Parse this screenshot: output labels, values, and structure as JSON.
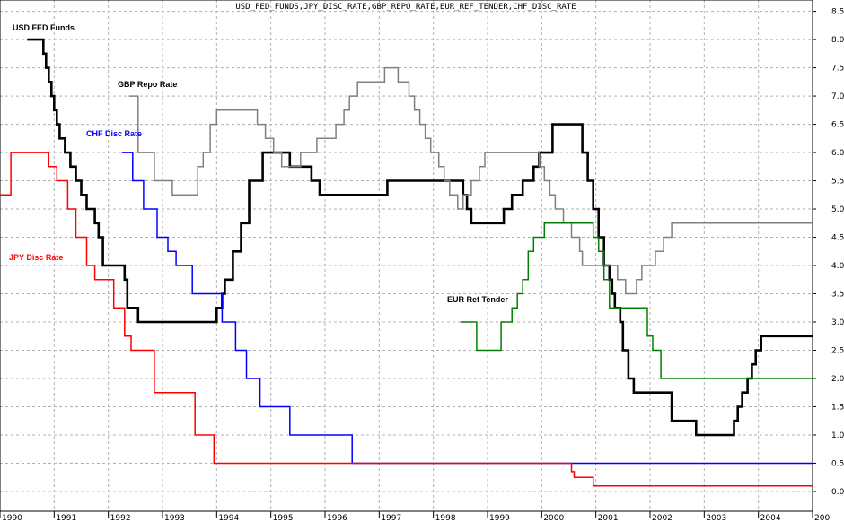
{
  "chart_data": {
    "type": "line",
    "title": "USD_FED_FUNDS,JPY_DISC_RATE,GBP_REPO_RATE,EUR_REF_TENDER,CHF_DISC_RATE",
    "xlabel": "",
    "ylabel": "",
    "xlim": [
      1990.0,
      2005.0
    ],
    "ylim": [
      -0.35,
      8.7
    ],
    "x_ticks": [
      "1990",
      "1991",
      "1992",
      "1993",
      "1994",
      "1995",
      "1996",
      "1997",
      "1998",
      "1999",
      "2000",
      "2001",
      "2002",
      "2003",
      "2004",
      "200"
    ],
    "y_ticks": [
      "0.0",
      "0.5",
      "1.0",
      "1.5",
      "2.0",
      "2.5",
      "3.0",
      "3.5",
      "4.0",
      "4.5",
      "5.0",
      "5.5",
      "6.0",
      "6.5",
      "7.0",
      "7.5",
      "8.0",
      "8.5"
    ],
    "grid": true,
    "series": [
      {
        "name": "USD FED Funds",
        "color": "#000000",
        "points": [
          [
            1990.5,
            8.0
          ],
          [
            1990.8,
            7.75
          ],
          [
            1990.85,
            7.5
          ],
          [
            1990.9,
            7.25
          ],
          [
            1990.95,
            7.0
          ],
          [
            1991.0,
            6.75
          ],
          [
            1991.05,
            6.5
          ],
          [
            1991.1,
            6.25
          ],
          [
            1991.2,
            6.0
          ],
          [
            1991.3,
            5.75
          ],
          [
            1991.4,
            5.5
          ],
          [
            1991.5,
            5.25
          ],
          [
            1991.6,
            5.0
          ],
          [
            1991.75,
            4.75
          ],
          [
            1991.82,
            4.5
          ],
          [
            1991.9,
            4.0
          ],
          [
            1992.3,
            3.75
          ],
          [
            1992.35,
            3.25
          ],
          [
            1992.55,
            3.0
          ],
          [
            1994.0,
            3.25
          ],
          [
            1994.1,
            3.5
          ],
          [
            1994.15,
            3.75
          ],
          [
            1994.3,
            4.25
          ],
          [
            1994.45,
            4.75
          ],
          [
            1994.6,
            5.5
          ],
          [
            1994.85,
            6.0
          ],
          [
            1995.35,
            5.75
          ],
          [
            1995.75,
            5.5
          ],
          [
            1995.9,
            5.25
          ],
          [
            1997.15,
            5.5
          ],
          [
            1998.55,
            5.25
          ],
          [
            1998.62,
            5.0
          ],
          [
            1998.7,
            4.75
          ],
          [
            1999.3,
            5.0
          ],
          [
            1999.45,
            5.25
          ],
          [
            1999.65,
            5.5
          ],
          [
            1999.85,
            5.75
          ],
          [
            1999.95,
            6.0
          ],
          [
            2000.2,
            6.5
          ],
          [
            2000.75,
            6.0
          ],
          [
            2000.85,
            5.5
          ],
          [
            2000.95,
            5.0
          ],
          [
            2001.05,
            4.5
          ],
          [
            2001.15,
            4.0
          ],
          [
            2001.25,
            3.75
          ],
          [
            2001.3,
            3.5
          ],
          [
            2001.35,
            3.25
          ],
          [
            2001.45,
            3.0
          ],
          [
            2001.5,
            2.5
          ],
          [
            2001.6,
            2.0
          ],
          [
            2001.7,
            1.75
          ],
          [
            2002.4,
            1.25
          ],
          [
            2002.85,
            1.0
          ],
          [
            2003.55,
            1.25
          ],
          [
            2003.62,
            1.5
          ],
          [
            2003.7,
            1.75
          ],
          [
            2003.8,
            2.0
          ],
          [
            2003.88,
            2.25
          ],
          [
            2003.95,
            2.5
          ],
          [
            2004.05,
            2.75
          ],
          [
            2004.15,
            2.75
          ]
        ]
      },
      {
        "name": "GBP Repo Rate",
        "color": "#808080",
        "points": [
          [
            1992.38,
            7.0
          ],
          [
            1992.55,
            6.0
          ],
          [
            1992.85,
            5.5
          ],
          [
            1993.18,
            5.25
          ],
          [
            1993.65,
            5.75
          ],
          [
            1993.75,
            6.0
          ],
          [
            1993.88,
            6.5
          ],
          [
            1994.0,
            6.75
          ],
          [
            1994.75,
            6.5
          ],
          [
            1994.9,
            6.25
          ],
          [
            1995.05,
            6.0
          ],
          [
            1995.2,
            5.75
          ],
          [
            1995.55,
            6.0
          ],
          [
            1995.85,
            6.25
          ],
          [
            1996.2,
            6.5
          ],
          [
            1996.35,
            6.75
          ],
          [
            1996.45,
            7.0
          ],
          [
            1996.6,
            7.25
          ],
          [
            1997.1,
            7.5
          ],
          [
            1997.35,
            7.25
          ],
          [
            1997.55,
            7.0
          ],
          [
            1997.65,
            6.75
          ],
          [
            1997.75,
            6.5
          ],
          [
            1997.85,
            6.25
          ],
          [
            1997.95,
            6.0
          ],
          [
            1998.1,
            5.75
          ],
          [
            1998.2,
            5.5
          ],
          [
            1998.3,
            5.25
          ],
          [
            1998.45,
            5.0
          ],
          [
            1998.55,
            5.25
          ],
          [
            1998.7,
            5.5
          ],
          [
            1998.85,
            5.75
          ],
          [
            1998.95,
            6.0
          ],
          [
            1999.95,
            5.75
          ],
          [
            2000.05,
            5.5
          ],
          [
            2000.15,
            5.25
          ],
          [
            2000.25,
            5.0
          ],
          [
            2000.4,
            4.75
          ],
          [
            2000.55,
            4.5
          ],
          [
            2000.7,
            4.25
          ],
          [
            2000.75,
            4.0
          ],
          [
            2001.4,
            3.75
          ],
          [
            2001.55,
            3.5
          ],
          [
            2001.75,
            3.75
          ],
          [
            2001.85,
            4.0
          ],
          [
            2002.1,
            4.25
          ],
          [
            2002.25,
            4.5
          ],
          [
            2002.4,
            4.75
          ],
          [
            2002.5,
            4.75
          ]
        ]
      },
      {
        "name": "CHF Disc Rate",
        "color": "#0000ff",
        "points": [
          [
            1992.25,
            6.0
          ],
          [
            1992.45,
            5.5
          ],
          [
            1992.65,
            5.0
          ],
          [
            1992.9,
            4.5
          ],
          [
            1993.1,
            4.25
          ],
          [
            1993.25,
            4.0
          ],
          [
            1993.55,
            3.5
          ],
          [
            1994.1,
            3.0
          ],
          [
            1994.35,
            2.5
          ],
          [
            1994.55,
            2.0
          ],
          [
            1994.8,
            1.5
          ],
          [
            1995.35,
            1.0
          ],
          [
            1996.5,
            0.5
          ],
          [
            2004.15,
            0.5
          ]
        ]
      },
      {
        "name": "JPY Disc Rate",
        "color": "#ff0000",
        "points": [
          [
            1989.5,
            4.25
          ],
          [
            1989.8,
            5.25
          ],
          [
            1990.2,
            6.0
          ],
          [
            1990.9,
            5.75
          ],
          [
            1991.05,
            5.5
          ],
          [
            1991.25,
            5.0
          ],
          [
            1991.4,
            4.5
          ],
          [
            1991.6,
            4.0
          ],
          [
            1991.75,
            3.75
          ],
          [
            1992.1,
            3.25
          ],
          [
            1992.3,
            2.75
          ],
          [
            1992.42,
            2.5
          ],
          [
            1992.85,
            1.75
          ],
          [
            1993.6,
            1.0
          ],
          [
            1993.95,
            0.5
          ],
          [
            2000.55,
            0.35
          ],
          [
            2000.6,
            0.25
          ],
          [
            2000.95,
            0.1
          ],
          [
            2004.15,
            0.1
          ]
        ]
      },
      {
        "name": "EUR Ref Tender",
        "color": "#008000",
        "points": [
          [
            1998.5,
            3.0
          ],
          [
            1998.8,
            2.5
          ],
          [
            1999.25,
            3.0
          ],
          [
            1999.45,
            3.25
          ],
          [
            1999.55,
            3.5
          ],
          [
            1999.65,
            3.75
          ],
          [
            1999.75,
            4.25
          ],
          [
            1999.85,
            4.5
          ],
          [
            2000.05,
            4.75
          ],
          [
            2000.95,
            4.5
          ],
          [
            2001.05,
            4.25
          ],
          [
            2001.15,
            3.75
          ],
          [
            2001.25,
            3.25
          ],
          [
            2001.95,
            2.75
          ],
          [
            2002.05,
            2.5
          ],
          [
            2002.2,
            2.0
          ],
          [
            2004.15,
            2.0
          ]
        ]
      }
    ]
  }
}
